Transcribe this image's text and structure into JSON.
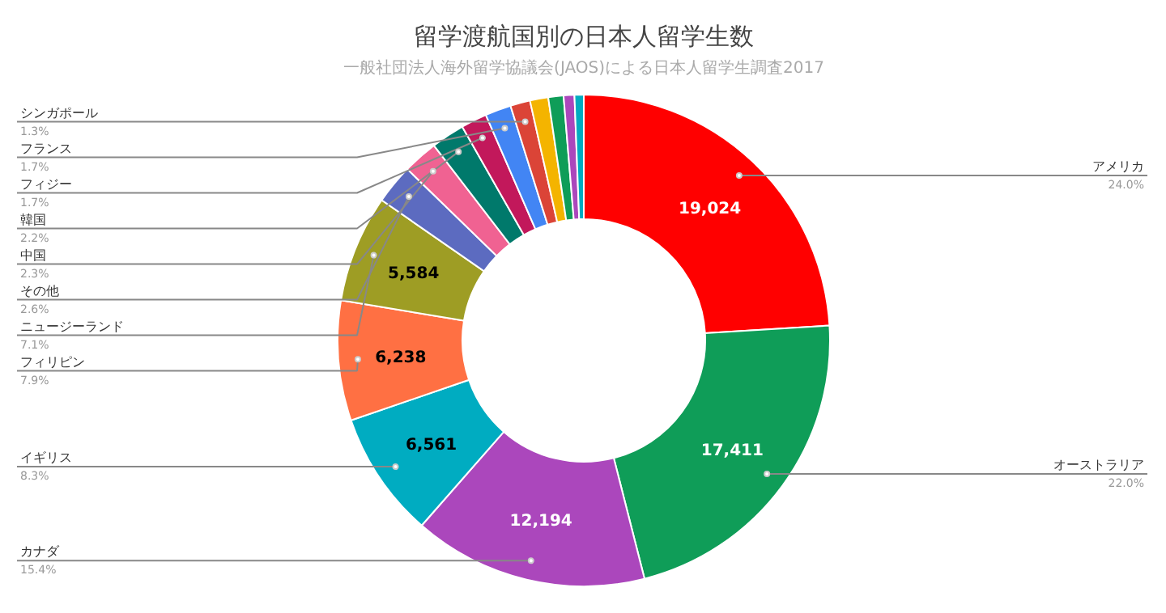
{
  "chart_data": {
    "type": "donut",
    "title": "留学渡航国別の日本人留学生数",
    "subtitle": "一般社団法人海外留学協議会(JAOS)による日本人留学生調査2017",
    "categories": [
      "アメリカ",
      "オーストラリア",
      "カナダ",
      "イギリス",
      "フィリピン",
      "ニュージーランド",
      "その他",
      "中国",
      "韓国",
      "フィジー",
      "フランス",
      "シンガポール",
      null,
      null,
      null,
      null
    ],
    "values": [
      19024,
      17411,
      12194,
      6561,
      6238,
      5584,
      2061,
      1823,
      1744,
      1348,
      1348,
      1030,
      950,
      790,
      560,
      480
    ],
    "value_labels": [
      "19,024",
      "17,411",
      "12,194",
      "6,561",
      "6,238",
      "5,584",
      null,
      null,
      null,
      null,
      null,
      null,
      null,
      null,
      null,
      null
    ],
    "colors": [
      "#ff0000",
      "#0f9d58",
      "#ab47bc",
      "#00acc1",
      "#ff7043",
      "#9e9d24",
      "#5c6bc0",
      "#f06292",
      "#00796b",
      "#c2185b",
      "#4285f4",
      "#db4437",
      "#f4b400",
      "#0f9d58",
      "#ab47bc",
      "#00acc1"
    ],
    "annotations": [
      {
        "text": "24.0%",
        "x": "アメリカ"
      },
      {
        "text": "22.0%",
        "x": "オーストラリア"
      },
      {
        "text": "15.4%",
        "x": "カナダ"
      },
      {
        "text": "8.3%",
        "x": "イギリス"
      },
      {
        "text": "7.9%",
        "x": "フィリピン"
      },
      {
        "text": "7.1%",
        "x": "ニュージーランド"
      },
      {
        "text": "2.6%",
        "x": "その他"
      },
      {
        "text": "2.3%",
        "x": "中国"
      },
      {
        "text": "2.2%",
        "x": "韓国"
      },
      {
        "text": "1.7%",
        "x": "フィジー"
      },
      {
        "text": "1.7%",
        "x": "フランス"
      },
      {
        "text": "1.3%",
        "x": "シンガポール"
      }
    ]
  }
}
